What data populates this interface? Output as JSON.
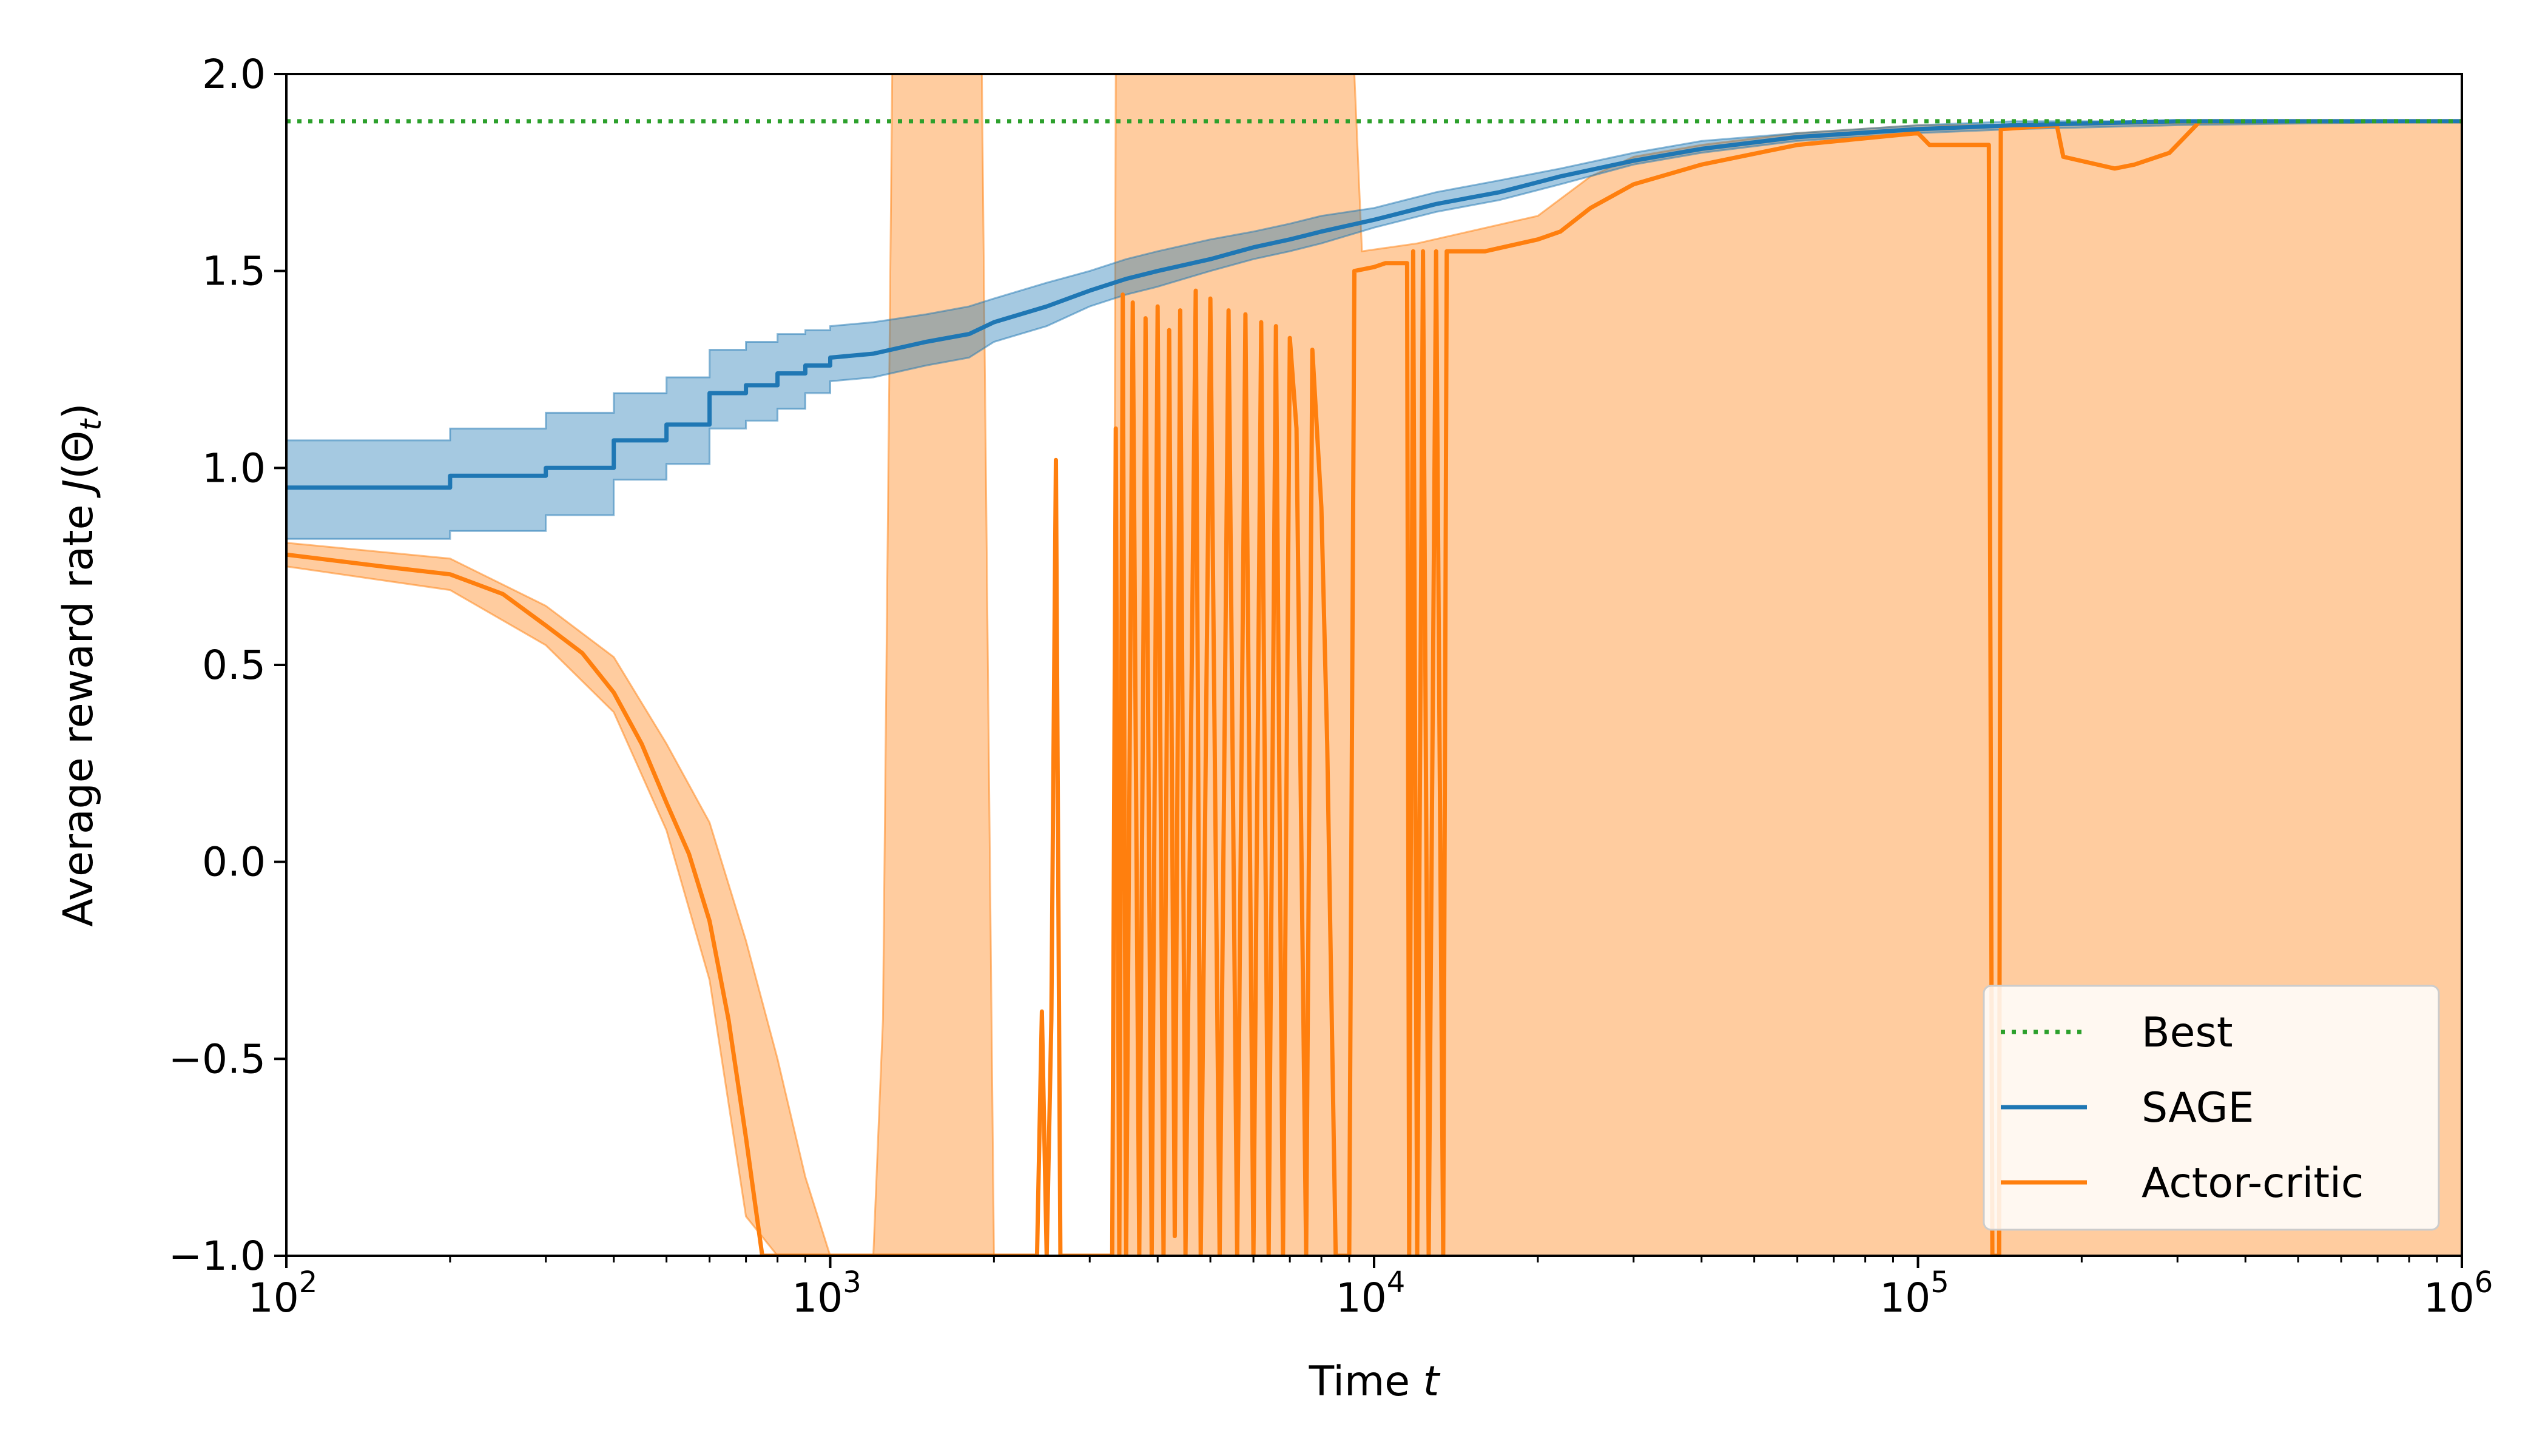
{
  "chart_data": {
    "type": "line",
    "xlabel": "Time t",
    "ylabel": "Average reward rate J(Θt)",
    "xscale": "log",
    "xlim": [
      100,
      1000000
    ],
    "ylim": [
      -1.0,
      2.0
    ],
    "x_ticks": [
      {
        "value": 100,
        "base": "10",
        "exp": "2"
      },
      {
        "value": 1000,
        "base": "10",
        "exp": "3"
      },
      {
        "value": 10000,
        "base": "10",
        "exp": "4"
      },
      {
        "value": 100000,
        "base": "10",
        "exp": "5"
      },
      {
        "value": 1000000,
        "base": "10",
        "exp": "6"
      }
    ],
    "y_ticks": [
      {
        "value": -1.0,
        "label": "−1.0"
      },
      {
        "value": -0.5,
        "label": "−0.5"
      },
      {
        "value": 0.0,
        "label": "0.0"
      },
      {
        "value": 0.5,
        "label": "0.5"
      },
      {
        "value": 1.0,
        "label": "1.0"
      },
      {
        "value": 1.5,
        "label": "1.5"
      },
      {
        "value": 2.0,
        "label": "2.0"
      }
    ],
    "grid": false,
    "legend_position": "lower-right",
    "legend": [
      {
        "name": "Best",
        "color": "#2ca02c",
        "style": "dotted"
      },
      {
        "name": "SAGE",
        "color": "#1f77b4",
        "style": "solid"
      },
      {
        "name": "Actor-critic",
        "color": "#ff7f0e",
        "style": "solid"
      }
    ],
    "best": {
      "name": "Best",
      "value": 1.88,
      "color": "#2ca02c"
    },
    "sage": {
      "name": "SAGE",
      "color": "#1f77b4",
      "mean": [
        [
          100,
          0.95
        ],
        [
          200,
          0.95
        ],
        [
          200,
          0.98
        ],
        [
          300,
          0.98
        ],
        [
          300,
          1.0
        ],
        [
          400,
          1.0
        ],
        [
          400,
          1.07
        ],
        [
          500,
          1.07
        ],
        [
          500,
          1.11
        ],
        [
          600,
          1.11
        ],
        [
          600,
          1.19
        ],
        [
          700,
          1.19
        ],
        [
          700,
          1.21
        ],
        [
          800,
          1.21
        ],
        [
          800,
          1.24
        ],
        [
          900,
          1.24
        ],
        [
          900,
          1.26
        ],
        [
          1000,
          1.26
        ],
        [
          1000,
          1.28
        ],
        [
          1200,
          1.29
        ],
        [
          1500,
          1.32
        ],
        [
          1800,
          1.34
        ],
        [
          2000,
          1.37
        ],
        [
          2500,
          1.41
        ],
        [
          3000,
          1.45
        ],
        [
          3500,
          1.48
        ],
        [
          4000,
          1.5
        ],
        [
          5000,
          1.53
        ],
        [
          6000,
          1.56
        ],
        [
          7000,
          1.58
        ],
        [
          8000,
          1.6
        ],
        [
          10000,
          1.63
        ],
        [
          13000,
          1.67
        ],
        [
          17000,
          1.7
        ],
        [
          22000,
          1.74
        ],
        [
          30000,
          1.78
        ],
        [
          40000,
          1.81
        ],
        [
          60000,
          1.84
        ],
        [
          100000,
          1.86
        ],
        [
          150000,
          1.87
        ],
        [
          300000,
          1.88
        ],
        [
          1000000,
          1.88
        ]
      ],
      "lower": [
        [
          100,
          0.82
        ],
        [
          200,
          0.82
        ],
        [
          200,
          0.84
        ],
        [
          300,
          0.84
        ],
        [
          300,
          0.88
        ],
        [
          400,
          0.88
        ],
        [
          400,
          0.97
        ],
        [
          500,
          0.97
        ],
        [
          500,
          1.01
        ],
        [
          600,
          1.01
        ],
        [
          600,
          1.1
        ],
        [
          700,
          1.1
        ],
        [
          700,
          1.12
        ],
        [
          800,
          1.12
        ],
        [
          800,
          1.15
        ],
        [
          900,
          1.15
        ],
        [
          900,
          1.19
        ],
        [
          1000,
          1.19
        ],
        [
          1000,
          1.22
        ],
        [
          1200,
          1.23
        ],
        [
          1500,
          1.26
        ],
        [
          1800,
          1.28
        ],
        [
          2000,
          1.32
        ],
        [
          2500,
          1.36
        ],
        [
          3000,
          1.41
        ],
        [
          3500,
          1.44
        ],
        [
          4000,
          1.46
        ],
        [
          5000,
          1.5
        ],
        [
          6000,
          1.53
        ],
        [
          7000,
          1.55
        ],
        [
          8000,
          1.57
        ],
        [
          10000,
          1.61
        ],
        [
          13000,
          1.65
        ],
        [
          17000,
          1.68
        ],
        [
          22000,
          1.72
        ],
        [
          30000,
          1.77
        ],
        [
          40000,
          1.8
        ],
        [
          60000,
          1.83
        ],
        [
          100000,
          1.85
        ],
        [
          150000,
          1.86
        ],
        [
          300000,
          1.87
        ],
        [
          1000000,
          1.88
        ]
      ],
      "upper": [
        [
          100,
          1.07
        ],
        [
          200,
          1.07
        ],
        [
          200,
          1.1
        ],
        [
          300,
          1.1
        ],
        [
          300,
          1.14
        ],
        [
          400,
          1.14
        ],
        [
          400,
          1.19
        ],
        [
          500,
          1.19
        ],
        [
          500,
          1.23
        ],
        [
          600,
          1.23
        ],
        [
          600,
          1.3
        ],
        [
          700,
          1.3
        ],
        [
          700,
          1.32
        ],
        [
          800,
          1.32
        ],
        [
          800,
          1.34
        ],
        [
          900,
          1.34
        ],
        [
          900,
          1.35
        ],
        [
          1000,
          1.35
        ],
        [
          1000,
          1.36
        ],
        [
          1200,
          1.37
        ],
        [
          1500,
          1.39
        ],
        [
          1800,
          1.41
        ],
        [
          2000,
          1.43
        ],
        [
          2500,
          1.47
        ],
        [
          3000,
          1.5
        ],
        [
          3500,
          1.53
        ],
        [
          4000,
          1.55
        ],
        [
          5000,
          1.58
        ],
        [
          6000,
          1.6
        ],
        [
          7000,
          1.62
        ],
        [
          8000,
          1.64
        ],
        [
          10000,
          1.66
        ],
        [
          13000,
          1.7
        ],
        [
          17000,
          1.73
        ],
        [
          22000,
          1.76
        ],
        [
          30000,
          1.8
        ],
        [
          40000,
          1.83
        ],
        [
          60000,
          1.85
        ],
        [
          100000,
          1.87
        ],
        [
          150000,
          1.88
        ],
        [
          300000,
          1.88
        ],
        [
          1000000,
          1.88
        ]
      ]
    },
    "actor_critic": {
      "name": "Actor-critic",
      "color": "#ff7f0e",
      "mean": [
        [
          100,
          0.78
        ],
        [
          150,
          0.75
        ],
        [
          200,
          0.73
        ],
        [
          250,
          0.68
        ],
        [
          300,
          0.6
        ],
        [
          350,
          0.53
        ],
        [
          400,
          0.43
        ],
        [
          450,
          0.3
        ],
        [
          500,
          0.15
        ],
        [
          550,
          0.02
        ],
        [
          600,
          -0.15
        ],
        [
          650,
          -0.4
        ],
        [
          700,
          -0.7
        ],
        [
          750,
          -1.0
        ],
        [
          2400,
          -1.0
        ],
        [
          2450,
          -0.38
        ],
        [
          2500,
          -1.0
        ],
        [
          2550,
          -0.4
        ],
        [
          2600,
          1.02
        ],
        [
          2650,
          -1.0
        ],
        [
          3300,
          -1.0
        ],
        [
          3350,
          1.1
        ],
        [
          3400,
          -1.0
        ],
        [
          3450,
          1.44
        ],
        [
          3500,
          -1.0
        ],
        [
          3600,
          1.42
        ],
        [
          3700,
          -1.0
        ],
        [
          3800,
          1.38
        ],
        [
          3900,
          -1.0
        ],
        [
          4000,
          1.41
        ],
        [
          4100,
          -1.0
        ],
        [
          4200,
          1.35
        ],
        [
          4300,
          -0.95
        ],
        [
          4400,
          1.4
        ],
        [
          4500,
          -1.0
        ],
        [
          4700,
          1.45
        ],
        [
          4800,
          -1.0
        ],
        [
          5000,
          1.43
        ],
        [
          5200,
          -1.0
        ],
        [
          5400,
          1.4
        ],
        [
          5600,
          -1.0
        ],
        [
          5800,
          1.39
        ],
        [
          6000,
          -1.0
        ],
        [
          6200,
          1.37
        ],
        [
          6400,
          -1.0
        ],
        [
          6600,
          1.36
        ],
        [
          6800,
          -1.0
        ],
        [
          7000,
          1.33
        ],
        [
          7200,
          1.1
        ],
        [
          7500,
          -1.0
        ],
        [
          7700,
          1.3
        ],
        [
          8000,
          0.9
        ],
        [
          8200,
          0.3
        ],
        [
          8500,
          -1.0
        ],
        [
          9000,
          -1.0
        ],
        [
          9200,
          1.5
        ],
        [
          10000,
          1.51
        ],
        [
          10500,
          1.52
        ],
        [
          11500,
          1.52
        ],
        [
          11600,
          -1.0
        ],
        [
          11800,
          1.55
        ],
        [
          12000,
          -1.0
        ],
        [
          12300,
          1.55
        ],
        [
          12600,
          -1.0
        ],
        [
          13000,
          1.55
        ],
        [
          13400,
          -1.0
        ],
        [
          13600,
          1.55
        ],
        [
          16000,
          1.55
        ],
        [
          20000,
          1.58
        ],
        [
          22000,
          1.6
        ],
        [
          25000,
          1.66
        ],
        [
          30000,
          1.72
        ],
        [
          40000,
          1.77
        ],
        [
          60000,
          1.82
        ],
        [
          100000,
          1.85
        ],
        [
          105000,
          1.82
        ],
        [
          135000,
          1.82
        ],
        [
          137000,
          -1.0
        ],
        [
          141000,
          -1.0
        ],
        [
          142000,
          1.86
        ],
        [
          180000,
          1.87
        ],
        [
          185000,
          1.79
        ],
        [
          230000,
          1.76
        ],
        [
          250000,
          1.77
        ],
        [
          290000,
          1.8
        ],
        [
          330000,
          1.88
        ],
        [
          1000000,
          1.88
        ]
      ],
      "lower": [
        [
          100,
          0.75
        ],
        [
          200,
          0.69
        ],
        [
          300,
          0.55
        ],
        [
          400,
          0.38
        ],
        [
          500,
          0.08
        ],
        [
          600,
          -0.3
        ],
        [
          700,
          -0.9
        ],
        [
          800,
          -1.0
        ],
        [
          1000000,
          -1.0
        ]
      ],
      "upper": [
        [
          100,
          0.81
        ],
        [
          200,
          0.77
        ],
        [
          300,
          0.65
        ],
        [
          400,
          0.52
        ],
        [
          500,
          0.3
        ],
        [
          600,
          0.1
        ],
        [
          700,
          -0.2
        ],
        [
          800,
          -0.5
        ],
        [
          900,
          -0.8
        ],
        [
          1000,
          -1.0
        ],
        [
          1200,
          -1.0
        ],
        [
          1250,
          -0.4
        ],
        [
          1300,
          2.0
        ],
        [
          1900,
          2.0
        ],
        [
          2000,
          -1.0
        ],
        [
          3300,
          -1.0
        ],
        [
          3350,
          2.0
        ],
        [
          9200,
          2.0
        ],
        [
          9500,
          1.55
        ],
        [
          12000,
          1.57
        ],
        [
          20000,
          1.64
        ],
        [
          25000,
          1.74
        ],
        [
          30000,
          1.79
        ],
        [
          40000,
          1.82
        ],
        [
          60000,
          1.85
        ],
        [
          100000,
          1.87
        ],
        [
          1000000,
          1.88
        ]
      ]
    }
  }
}
